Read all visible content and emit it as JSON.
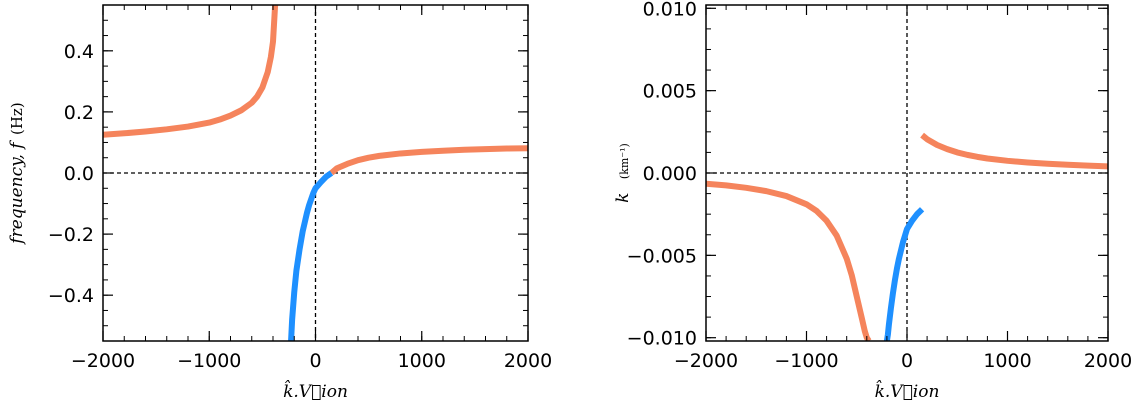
{
  "chart_data": [
    {
      "type": "line",
      "title": "",
      "xlabel": "k̂.V⃗ion",
      "ylabel": "frequency, f",
      "ylabel_unit": "(Hz)",
      "xlim": [
        -2000,
        2000
      ],
      "ylim": [
        -0.55,
        0.55
      ],
      "xticks": [
        -2000,
        -1000,
        0,
        1000,
        2000
      ],
      "xtick_labels": [
        "−2000",
        "−1000",
        "0",
        "1000",
        "2000"
      ],
      "yticks": [
        -0.4,
        -0.2,
        0.0,
        0.2,
        0.4
      ],
      "ytick_labels": [
        "−0.4",
        "−0.2",
        "0.0",
        "0.2",
        "0.4"
      ],
      "reference_lines": {
        "x": 0,
        "y": 0
      },
      "grid": false,
      "series": [
        {
          "color": "#F5845C",
          "x": [
            -2000,
            -1800,
            -1600,
            -1400,
            -1200,
            -1000,
            -900,
            -800,
            -700,
            -600,
            -550,
            -500,
            -450,
            -420,
            -400,
            -380
          ],
          "y": [
            0.125,
            0.13,
            0.136,
            0.143,
            0.152,
            0.165,
            0.175,
            0.188,
            0.205,
            0.23,
            0.25,
            0.28,
            0.33,
            0.38,
            0.43,
            0.55
          ]
        },
        {
          "color": "#F5845C",
          "x": [
            150,
            200,
            300,
            400,
            500,
            600,
            800,
            1000,
            1200,
            1400,
            1600,
            1800,
            2000
          ],
          "y": [
            0.0,
            0.015,
            0.03,
            0.042,
            0.05,
            0.056,
            0.064,
            0.069,
            0.073,
            0.076,
            0.078,
            0.08,
            0.081
          ]
        },
        {
          "color": "#1E90FF",
          "x": [
            -230,
            -220,
            -200,
            -180,
            -150,
            -120,
            -100,
            -80,
            -60,
            -40,
            -20,
            0,
            50,
            100,
            150
          ],
          "y": [
            -0.55,
            -0.48,
            -0.39,
            -0.32,
            -0.25,
            -0.19,
            -0.16,
            -0.13,
            -0.105,
            -0.085,
            -0.065,
            -0.05,
            -0.03,
            -0.012,
            0.0
          ]
        }
      ]
    },
    {
      "type": "line",
      "title": "",
      "xlabel": "k̂.V⃗ion",
      "ylabel": "k",
      "ylabel_unit": "(km⁻¹)",
      "xlim": [
        -2000,
        2000
      ],
      "ylim": [
        -0.0102,
        0.0102
      ],
      "xticks": [
        -2000,
        -1000,
        0,
        1000,
        2000
      ],
      "xtick_labels": [
        "−2000",
        "−1000",
        "0",
        "1000",
        "2000"
      ],
      "yticks": [
        -0.01,
        -0.005,
        0.0,
        0.005,
        0.01
      ],
      "ytick_labels": [
        "−0.010",
        "−0.005",
        "0.000",
        "0.005",
        "0.010"
      ],
      "reference_lines": {
        "x": 0,
        "y": 0
      },
      "grid": false,
      "series": [
        {
          "color": "#F5845C",
          "x": [
            -2000,
            -1800,
            -1600,
            -1400,
            -1200,
            -1000,
            -900,
            -800,
            -700,
            -600,
            -550,
            -500,
            -450,
            -420,
            -400,
            -380
          ],
          "y": [
            -0.00065,
            -0.00075,
            -0.0009,
            -0.0011,
            -0.0014,
            -0.0019,
            -0.0023,
            -0.0029,
            -0.0038,
            -0.0052,
            -0.0062,
            -0.0075,
            -0.0088,
            -0.0096,
            -0.01,
            -0.0102
          ]
        },
        {
          "color": "#F5845C",
          "x": [
            150,
            200,
            300,
            400,
            500,
            600,
            700,
            800,
            1000,
            1200,
            1400,
            1600,
            1800,
            2000
          ],
          "y": [
            0.0023,
            0.00205,
            0.0017,
            0.00145,
            0.00125,
            0.0011,
            0.00098,
            0.00088,
            0.00074,
            0.00064,
            0.00056,
            0.0005,
            0.00045,
            0.0004
          ]
        },
        {
          "color": "#1E90FF",
          "x": [
            -200,
            -190,
            -180,
            -160,
            -140,
            -120,
            -100,
            -80,
            -60,
            -40,
            -20,
            0,
            50,
            100,
            150
          ],
          "y": [
            -0.0102,
            -0.0098,
            -0.0092,
            -0.0082,
            -0.0073,
            -0.0065,
            -0.0058,
            -0.0052,
            -0.0047,
            -0.0042,
            -0.0038,
            -0.0034,
            -0.0029,
            -0.0025,
            -0.0022
          ]
        }
      ]
    }
  ]
}
